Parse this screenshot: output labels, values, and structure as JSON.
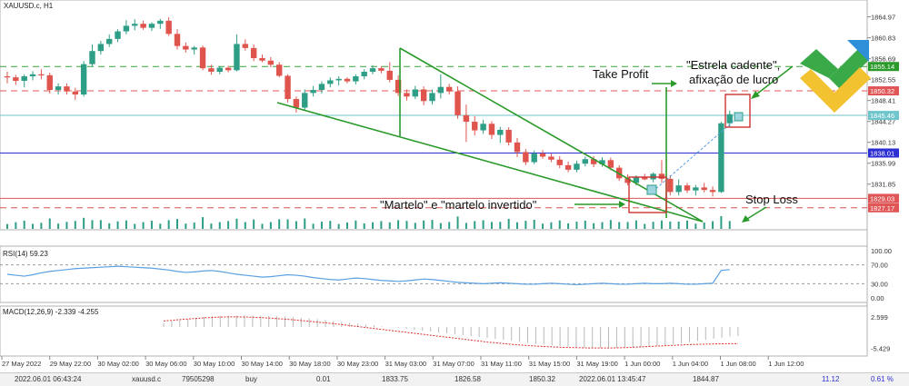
{
  "symbol_label": "XAUUSD.c, H1",
  "colors": {
    "bull": "#2e9e86",
    "bear": "#e0544e",
    "trend": "#2a9a2a",
    "blue_line": "#2d2dd4",
    "cyan_line": "#6ec6cc",
    "red_dash": "#e05555",
    "green_dash": "#3aa03a",
    "rsi": "#5aa0e0",
    "macd_signal": "#e03030",
    "annotation_box": "#cc3333",
    "logo_green": "#3aaa49",
    "logo_yellow": "#f2c230",
    "logo_blue": "#2f8fd8"
  },
  "chart_data": [
    {
      "type": "candlestick",
      "title": "XAUUSD.c, H1",
      "ylim": [
        1825.87,
        1866.87
      ],
      "y_ticks": [
        "1864.97",
        "1860.83",
        "1856.69",
        "1852.55",
        "1848.41",
        "1844.27",
        "1840.13",
        "1835.99",
        "1831.85"
      ],
      "price_badges": [
        {
          "label": "1855.14",
          "value": 1855.14,
          "color": "#2a9a2a"
        },
        {
          "label": "1850.32",
          "value": 1850.32,
          "color": "#e05555"
        },
        {
          "label": "1845.46",
          "value": 1845.46,
          "color": "#6ec6cc"
        },
        {
          "label": "1838.01",
          "value": 1838.01,
          "color": "#2d2dd4"
        },
        {
          "label": "1829.03",
          "value": 1829.03,
          "color": "#e05555"
        },
        {
          "label": "1827.17",
          "value": 1827.17,
          "color": "#e05555"
        }
      ],
      "horizontal_lines": [
        {
          "value": 1855.14,
          "style": "dashed",
          "color": "#3aa03a"
        },
        {
          "value": 1850.32,
          "style": "dashed",
          "color": "#e05555"
        },
        {
          "value": 1845.46,
          "style": "solid",
          "color": "#6ec6cc"
        },
        {
          "value": 1838.01,
          "style": "solid",
          "color": "#2d2dd4"
        },
        {
          "value": 1829.03,
          "style": "solid",
          "color": "#e05555"
        },
        {
          "value": 1827.17,
          "style": "dashed",
          "color": "#e05555"
        }
      ],
      "candles": [
        [
          1853.2,
          1854.1,
          1851.8,
          1853.0
        ],
        [
          1853.0,
          1853.5,
          1851.5,
          1852.3
        ],
        [
          1852.3,
          1853.6,
          1851.0,
          1853.2
        ],
        [
          1853.2,
          1854.2,
          1852.4,
          1853.6
        ],
        [
          1853.6,
          1854.6,
          1852.6,
          1853.4
        ],
        [
          1853.4,
          1853.9,
          1849.8,
          1850.5
        ],
        [
          1850.5,
          1851.8,
          1849.6,
          1851.2
        ],
        [
          1851.2,
          1851.8,
          1849.6,
          1850.2
        ],
        [
          1850.2,
          1850.9,
          1848.5,
          1849.6
        ],
        [
          1849.6,
          1856.2,
          1849.2,
          1855.6
        ],
        [
          1855.6,
          1859.5,
          1855.1,
          1858.2
        ],
        [
          1858.2,
          1860.2,
          1857.5,
          1859.6
        ],
        [
          1859.6,
          1861.5,
          1859.0,
          1860.6
        ],
        [
          1860.6,
          1862.5,
          1860.0,
          1862.1
        ],
        [
          1862.1,
          1864.3,
          1861.5,
          1863.2
        ],
        [
          1863.2,
          1864.5,
          1862.3,
          1863.6
        ],
        [
          1863.6,
          1864.2,
          1862.4,
          1862.8
        ],
        [
          1862.8,
          1863.9,
          1862.2,
          1863.6
        ],
        [
          1863.6,
          1864.6,
          1862.6,
          1864.2
        ],
        [
          1864.2,
          1864.9,
          1861.2,
          1861.6
        ],
        [
          1861.6,
          1862.5,
          1858.5,
          1859.2
        ],
        [
          1859.2,
          1859.9,
          1857.9,
          1858.5
        ],
        [
          1858.5,
          1859.2,
          1857.5,
          1858.9
        ],
        [
          1858.9,
          1859.3,
          1854.4,
          1854.8
        ],
        [
          1854.8,
          1855.5,
          1853.5,
          1854.1
        ],
        [
          1854.1,
          1855.2,
          1853.6,
          1854.9
        ],
        [
          1854.9,
          1855.3,
          1854.0,
          1854.4
        ],
        [
          1854.4,
          1861.5,
          1854.2,
          1859.6
        ],
        [
          1859.6,
          1860.5,
          1858.3,
          1858.8
        ],
        [
          1858.8,
          1859.5,
          1856.2,
          1856.8
        ],
        [
          1856.8,
          1857.5,
          1856.0,
          1856.3
        ],
        [
          1856.3,
          1857.0,
          1855.0,
          1855.5
        ],
        [
          1855.5,
          1856.0,
          1853.0,
          1853.3
        ],
        [
          1853.3,
          1853.6,
          1848.0,
          1848.7
        ],
        [
          1848.7,
          1849.2,
          1846.0,
          1847.0
        ],
        [
          1847.0,
          1850.6,
          1846.5,
          1849.9
        ],
        [
          1849.9,
          1851.3,
          1849.2,
          1850.5
        ],
        [
          1850.5,
          1852.2,
          1849.8,
          1851.7
        ],
        [
          1851.7,
          1853.0,
          1851.0,
          1852.4
        ],
        [
          1852.4,
          1853.2,
          1851.4,
          1852.7
        ],
        [
          1852.7,
          1853.0,
          1851.8,
          1852.2
        ],
        [
          1852.2,
          1853.6,
          1851.6,
          1853.2
        ],
        [
          1853.2,
          1854.6,
          1852.6,
          1854.1
        ],
        [
          1854.1,
          1855.4,
          1853.6,
          1854.8
        ],
        [
          1854.8,
          1855.2,
          1853.8,
          1854.3
        ],
        [
          1854.3,
          1856.0,
          1852.0,
          1852.5
        ],
        [
          1852.5,
          1853.4,
          1849.3,
          1849.9
        ],
        [
          1849.9,
          1850.6,
          1848.4,
          1849.2
        ],
        [
          1849.2,
          1851.3,
          1848.7,
          1850.6
        ],
        [
          1850.6,
          1851.2,
          1847.5,
          1848.3
        ],
        [
          1848.3,
          1850.6,
          1847.6,
          1849.9
        ],
        [
          1849.9,
          1853.6,
          1848.8,
          1851.1
        ],
        [
          1851.1,
          1851.7,
          1849.6,
          1850.2
        ],
        [
          1850.2,
          1851.2,
          1844.8,
          1845.5
        ],
        [
          1845.5,
          1847.6,
          1840.2,
          1844.2
        ],
        [
          1844.2,
          1845.3,
          1841.5,
          1842.5
        ],
        [
          1842.5,
          1844.6,
          1841.8,
          1843.8
        ],
        [
          1843.8,
          1844.3,
          1840.8,
          1841.6
        ],
        [
          1841.6,
          1843.2,
          1840.0,
          1842.6
        ],
        [
          1842.6,
          1843.1,
          1839.5,
          1840.1
        ],
        [
          1840.1,
          1841.0,
          1837.2,
          1838.2
        ],
        [
          1838.2,
          1838.8,
          1835.6,
          1836.2
        ],
        [
          1836.2,
          1838.5,
          1835.8,
          1837.9
        ],
        [
          1837.9,
          1838.6,
          1836.9,
          1837.3
        ],
        [
          1837.3,
          1837.9,
          1836.2,
          1836.7
        ],
        [
          1836.7,
          1837.4,
          1835.0,
          1835.6
        ],
        [
          1835.6,
          1836.3,
          1834.2,
          1834.7
        ],
        [
          1834.7,
          1836.5,
          1834.2,
          1835.9
        ],
        [
          1835.9,
          1837.3,
          1835.4,
          1836.8
        ],
        [
          1836.8,
          1837.4,
          1835.2,
          1835.8
        ],
        [
          1835.8,
          1837.2,
          1835.3,
          1836.6
        ],
        [
          1836.6,
          1837.1,
          1834.6,
          1835.1
        ],
        [
          1835.1,
          1835.6,
          1832.5,
          1833.0
        ],
        [
          1833.0,
          1833.8,
          1831.6,
          1832.1
        ],
        [
          1832.1,
          1833.6,
          1831.6,
          1833.2
        ],
        [
          1833.2,
          1833.9,
          1832.6,
          1832.8
        ],
        [
          1832.8,
          1834.2,
          1832.2,
          1833.9
        ],
        [
          1833.9,
          1836.6,
          1832.1,
          1832.9
        ],
        [
          1832.9,
          1833.6,
          1829.6,
          1830.3
        ],
        [
          1830.3,
          1832.8,
          1829.6,
          1831.6
        ],
        [
          1831.6,
          1832.1,
          1830.1,
          1830.6
        ],
        [
          1830.6,
          1831.7,
          1829.6,
          1831.2
        ],
        [
          1831.2,
          1832.1,
          1830.2,
          1830.7
        ],
        [
          1830.7,
          1831.4,
          1829.4,
          1830.3
        ],
        [
          1830.3,
          1844.2,
          1830.1,
          1843.9
        ],
        [
          1843.9,
          1846.4,
          1843.2,
          1845.7
        ]
      ]
    },
    {
      "type": "line",
      "title": "RSI(14) 59.23",
      "ylim": [
        0,
        100
      ],
      "y_ticks": [
        "100.00",
        "70.00",
        "30.00",
        "0.00"
      ],
      "levels": [
        70,
        30
      ],
      "series": [
        {
          "values": [
            50,
            48,
            46,
            49,
            53,
            56,
            58,
            60,
            62,
            63,
            64,
            65,
            66,
            67,
            66,
            65,
            64,
            63,
            61,
            59,
            56,
            54,
            55,
            57,
            58,
            56,
            53,
            50,
            48,
            46,
            44,
            45,
            47,
            49,
            48,
            46,
            43,
            41,
            39,
            38,
            40,
            42,
            41,
            39,
            37,
            36,
            35,
            36,
            38,
            40,
            39,
            37,
            35,
            33,
            32,
            31,
            30,
            31,
            32,
            31,
            30,
            29,
            29,
            30,
            31,
            30,
            29,
            28,
            29,
            30,
            31,
            30,
            29,
            29,
            30,
            31,
            30,
            30,
            31,
            30,
            29,
            29,
            30,
            31,
            58,
            60
          ]
        }
      ]
    },
    {
      "type": "bar",
      "title": "MACD(12,26,9) -2.339 -4.255",
      "ylim": [
        -7.0,
        4.5
      ],
      "y_ticks": [
        "2.599",
        "-5.429"
      ],
      "series": [
        {
          "values": [
            1.0,
            1.5,
            1.8,
            2.1,
            2.4,
            2.6,
            2.8,
            2.9,
            3.0,
            3.0,
            3.05,
            3.0,
            2.95,
            2.9,
            2.8,
            2.7,
            2.55,
            2.4,
            2.25,
            2.05,
            1.85,
            1.6,
            1.35,
            1.15,
            0.95,
            0.7,
            0.45,
            0.2,
            0.0,
            -0.2,
            -0.45,
            -0.7,
            -0.95,
            -1.15,
            -1.4,
            -1.6,
            -1.85,
            -2.05,
            -2.3,
            -2.55,
            -2.8,
            -3.05,
            -3.3,
            -3.55,
            -3.8,
            -4.05,
            -4.3,
            -4.5,
            -4.7,
            -4.9,
            -5.05,
            -5.15,
            -5.25,
            -5.3,
            -5.35,
            -5.4,
            -5.4,
            -5.35,
            -5.3,
            -5.2,
            -5.05,
            -4.9,
            -4.7,
            -4.45,
            -4.2,
            -3.9,
            -3.6,
            -3.3,
            -3.0,
            -2.7,
            -2.4,
            -2.339
          ]
        },
        {
          "values": [
            1.6,
            1.75,
            1.95,
            2.1,
            2.25,
            2.4,
            2.5,
            2.6,
            2.65,
            2.65,
            2.6,
            2.55,
            2.45,
            2.35,
            2.2,
            2.05,
            1.9,
            1.7,
            1.5,
            1.3,
            1.1,
            0.9,
            0.65,
            0.4,
            0.15,
            -0.1,
            -0.35,
            -0.6,
            -0.85,
            -1.1,
            -1.35,
            -1.6,
            -1.85,
            -2.1,
            -2.35,
            -2.6,
            -2.85,
            -3.1,
            -3.35,
            -3.6,
            -3.85,
            -4.05,
            -4.25,
            -4.45,
            -4.6,
            -4.75,
            -4.9,
            -5.0,
            -5.1,
            -5.2,
            -5.25,
            -5.3,
            -5.35,
            -5.4,
            -5.4,
            -5.4,
            -5.35,
            -5.3,
            -5.2,
            -5.1,
            -5.0,
            -4.9,
            -4.8,
            -4.7,
            -4.6,
            -4.5,
            -4.45,
            -4.4,
            -4.35,
            -4.3,
            -4.27,
            -4.255
          ]
        }
      ]
    }
  ],
  "time_labels": [
    "27 May 2022",
    "29 May 22:00",
    "30 May 02:00",
    "30 May 06:00",
    "30 May 10:00",
    "30 May 14:00",
    "30 May 18:00",
    "30 May 23:00",
    "31 May 03:00",
    "31 May 07:00",
    "31 May 11:00",
    "31 May 15:00",
    "31 May 19:00",
    "1 Jun 00:00",
    "1 Jun 04:00",
    "1 Jun 08:00",
    "1 Jun 12:00"
  ],
  "annotations": {
    "take_profit": "Take Profit",
    "evening_star_line1": "\"Estrela cadente\",",
    "evening_star_line2": "afixação de lucro",
    "hammer": "\"Martelo\" e \"martelo invertido\"",
    "stop_loss": "Stop Loss"
  },
  "status_bar": {
    "datetime": "2022.06.01 06:43:24",
    "symbol": "xauusd.c",
    "order": "79505298",
    "type": "buy",
    "volume": "0.01",
    "open_price": "1833.75",
    "sl": "1826.58",
    "tp": "1850.32",
    "time2": "2022.06.01 13:45:47",
    "price": "1844.87",
    "profit": "11.12",
    "percent": "0.61 %"
  }
}
